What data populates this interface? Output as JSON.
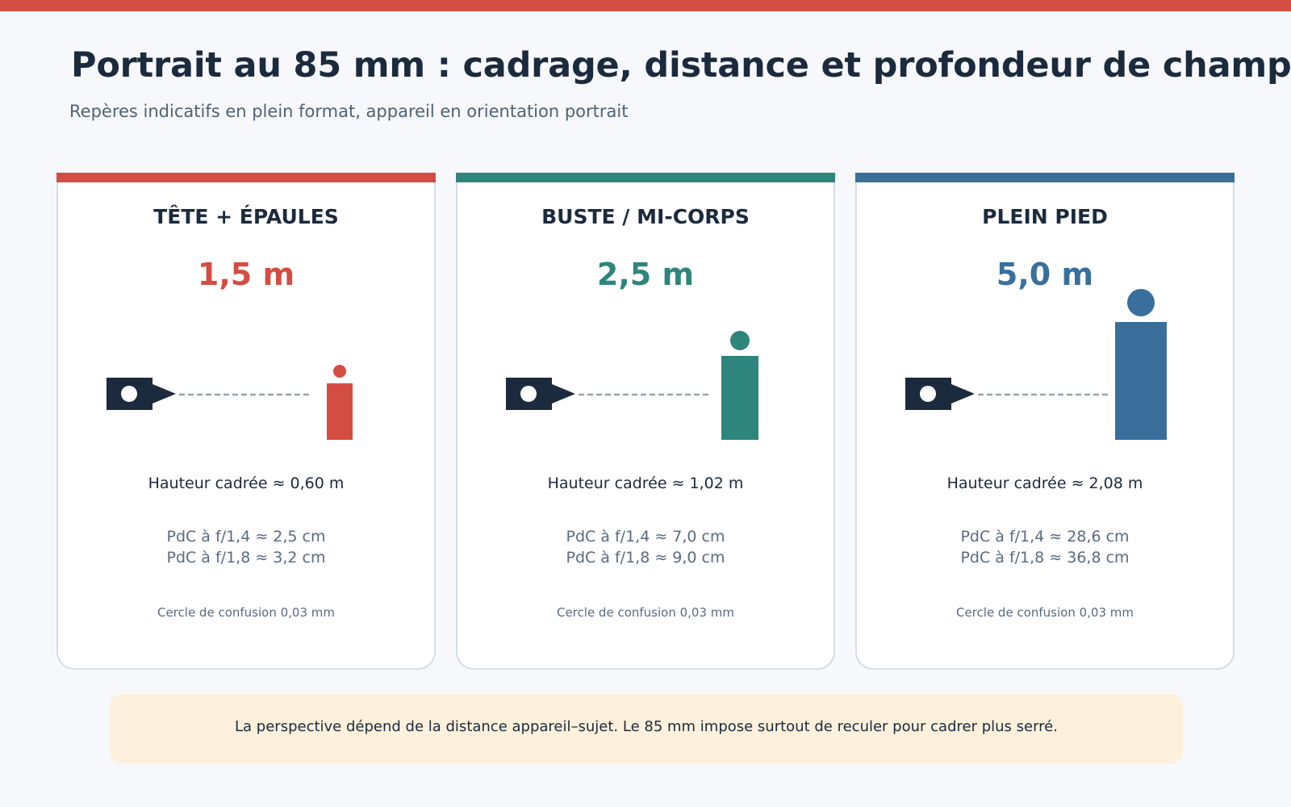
{
  "header": {
    "title": "Portrait au 85 mm : cadrage, distance et profondeur de champ",
    "subtitle": "Repères indicatifs en plein format, appareil en orientation portrait"
  },
  "cards": [
    {
      "title": "TÊTE + ÉPAULES",
      "distance": "1,5 m",
      "accent_color": "#d44d43",
      "subject_scale": "small",
      "framed_height": "Hauteur cadrée ≈ 0,60 m",
      "dof_f14": "PdC à f/1,4 ≈ 2,5 cm",
      "dof_f18": "PdC à f/1,8 ≈ 3,2 cm",
      "coc": "Cercle de confusion 0,03 mm"
    },
    {
      "title": "BUSTE / MI-CORPS",
      "distance": "2,5 m",
      "accent_color": "#2e857b",
      "subject_scale": "medium",
      "framed_height": "Hauteur cadrée ≈ 1,02 m",
      "dof_f14": "PdC à f/1,4 ≈ 7,0 cm",
      "dof_f18": "PdC à f/1,8 ≈ 9,0 cm",
      "coc": "Cercle de confusion 0,03 mm"
    },
    {
      "title": "PLEIN PIED",
      "distance": "5,0 m",
      "accent_color": "#3a6f9c",
      "subject_scale": "large",
      "framed_height": "Hauteur cadrée ≈ 2,08 m",
      "dof_f14": "PdC à f/1,4 ≈ 28,6 cm",
      "dof_f18": "PdC à f/1,8 ≈ 36,8 cm",
      "coc": "Cercle de confusion 0,03 mm"
    }
  ],
  "footer": {
    "note": "La perspective dépend de la distance appareil–sujet. Le 85 mm impose surtout de reculer pour cadrer plus serré."
  },
  "colors": {
    "top_bar": "#d44d43",
    "camera": "#1b2a3d",
    "dashed_line": "#9aa3ad",
    "footer_background": "#fdf0dc"
  },
  "icons": {
    "camera": "camera-icon",
    "subject": "person-icon"
  }
}
